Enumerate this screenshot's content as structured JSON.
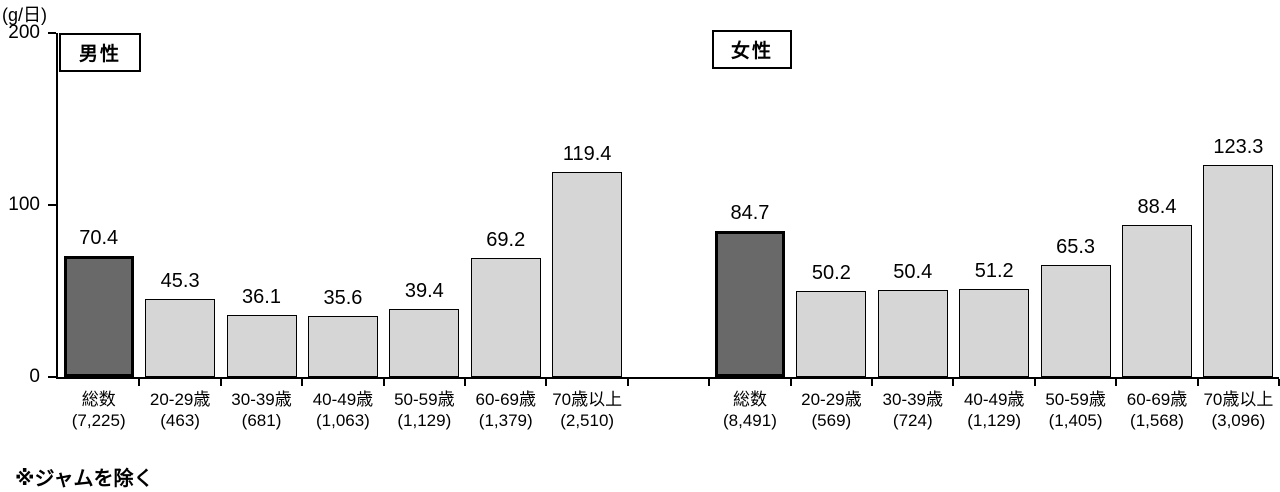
{
  "chart_data": {
    "type": "bar",
    "ylabel": "(g/日)",
    "ylim": [
      0,
      200
    ],
    "yticks": [
      0,
      100,
      200
    ],
    "grid": false,
    "footnote": "※ジャムを除く",
    "bar_colors": {
      "total": "#696969",
      "age_group": "#d6d6d6",
      "border": "#000000"
    },
    "groups": [
      {
        "key": "male",
        "label": "男性",
        "categories": [
          "総数",
          "20-29歳",
          "30-39歳",
          "40-49歳",
          "50-59歳",
          "60-69歳",
          "70歳以上"
        ],
        "counts": [
          "(7,225)",
          "(463)",
          "(681)",
          "(1,063)",
          "(1,129)",
          "(1,379)",
          "(2,510)"
        ],
        "values": [
          70.4,
          45.3,
          36.1,
          35.6,
          39.4,
          69.2,
          119.4
        ]
      },
      {
        "key": "female",
        "label": "女性",
        "categories": [
          "総数",
          "20-29歳",
          "30-39歳",
          "40-49歳",
          "50-59歳",
          "60-69歳",
          "70歳以上"
        ],
        "counts": [
          "(8,491)",
          "(569)",
          "(724)",
          "(1,129)",
          "(1,405)",
          "(1,568)",
          "(3,096)"
        ],
        "values": [
          84.7,
          50.2,
          50.4,
          51.2,
          65.3,
          88.4,
          123.3
        ]
      }
    ]
  }
}
